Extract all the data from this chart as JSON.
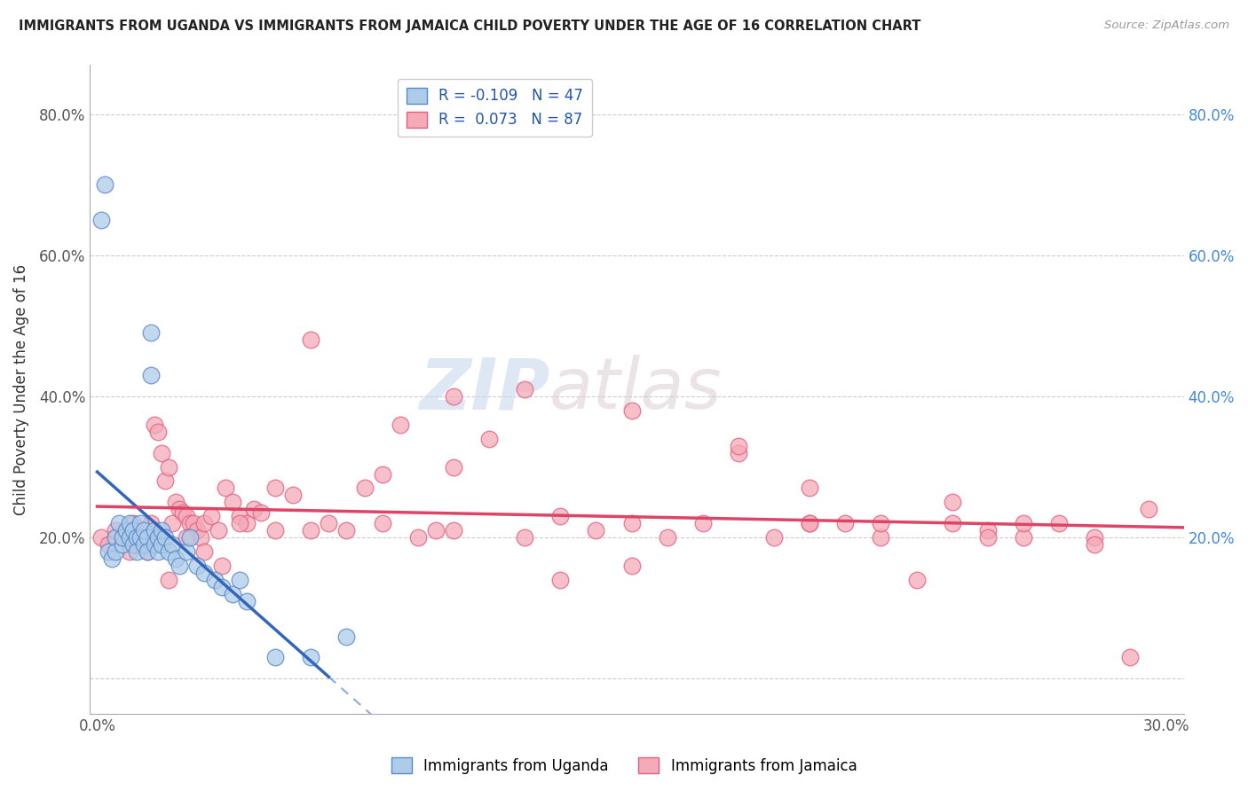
{
  "title": "IMMIGRANTS FROM UGANDA VS IMMIGRANTS FROM JAMAICA CHILD POVERTY UNDER THE AGE OF 16 CORRELATION CHART",
  "source": "Source: ZipAtlas.com",
  "ylabel": "Child Poverty Under the Age of 16",
  "xlim": [
    -0.002,
    0.305
  ],
  "ylim": [
    -0.05,
    0.87
  ],
  "ytick_values": [
    0.0,
    0.2,
    0.4,
    0.6,
    0.8
  ],
  "ytick_labels": [
    "",
    "20.0%",
    "40.0%",
    "60.0%",
    "80.0%"
  ],
  "xtick_values": [
    0.0,
    0.05,
    0.1,
    0.15,
    0.2,
    0.25,
    0.3
  ],
  "xtick_labels": [
    "0.0%",
    "",
    "",
    "",
    "",
    "",
    "30.0%"
  ],
  "right_ytick_values": [
    0.2,
    0.4,
    0.6,
    0.8
  ],
  "right_ytick_labels": [
    "20.0%",
    "40.0%",
    "60.0%",
    "80.0%"
  ],
  "uganda_color": "#aecce8",
  "jamaica_color": "#f5aab8",
  "uganda_edge_color": "#5588cc",
  "jamaica_edge_color": "#e06080",
  "uganda_line_color": "#3366bb",
  "jamaica_line_color": "#dd4466",
  "legend_uganda_label": "R = -0.109   N = 47",
  "legend_jamaica_label": "R =  0.073   N = 87",
  "watermark_zip": "ZIP",
  "watermark_atlas": "atlas",
  "uganda_x": [
    0.001,
    0.002,
    0.003,
    0.004,
    0.005,
    0.005,
    0.006,
    0.007,
    0.007,
    0.008,
    0.009,
    0.009,
    0.01,
    0.01,
    0.011,
    0.011,
    0.012,
    0.012,
    0.013,
    0.013,
    0.014,
    0.014,
    0.015,
    0.015,
    0.016,
    0.016,
    0.017,
    0.017,
    0.018,
    0.018,
    0.019,
    0.02,
    0.021,
    0.022,
    0.023,
    0.025,
    0.026,
    0.028,
    0.03,
    0.033,
    0.035,
    0.038,
    0.04,
    0.042,
    0.05,
    0.06,
    0.07
  ],
  "uganda_y": [
    0.65,
    0.7,
    0.18,
    0.17,
    0.2,
    0.18,
    0.22,
    0.19,
    0.2,
    0.21,
    0.2,
    0.22,
    0.19,
    0.21,
    0.2,
    0.18,
    0.22,
    0.2,
    0.19,
    0.21,
    0.2,
    0.18,
    0.49,
    0.43,
    0.19,
    0.21,
    0.2,
    0.18,
    0.19,
    0.21,
    0.2,
    0.18,
    0.19,
    0.17,
    0.16,
    0.18,
    0.2,
    0.16,
    0.15,
    0.14,
    0.13,
    0.12,
    0.14,
    0.11,
    0.03,
    0.03,
    0.06
  ],
  "jamaica_x": [
    0.001,
    0.003,
    0.005,
    0.007,
    0.009,
    0.01,
    0.011,
    0.012,
    0.013,
    0.014,
    0.015,
    0.016,
    0.017,
    0.018,
    0.019,
    0.02,
    0.021,
    0.022,
    0.023,
    0.024,
    0.025,
    0.026,
    0.027,
    0.028,
    0.029,
    0.03,
    0.032,
    0.034,
    0.036,
    0.038,
    0.04,
    0.042,
    0.044,
    0.046,
    0.05,
    0.055,
    0.06,
    0.065,
    0.07,
    0.075,
    0.08,
    0.085,
    0.09,
    0.095,
    0.1,
    0.11,
    0.12,
    0.13,
    0.14,
    0.15,
    0.16,
    0.17,
    0.18,
    0.19,
    0.2,
    0.21,
    0.22,
    0.23,
    0.24,
    0.25,
    0.26,
    0.27,
    0.28,
    0.29,
    0.295,
    0.02,
    0.025,
    0.03,
    0.035,
    0.04,
    0.05,
    0.06,
    0.08,
    0.1,
    0.12,
    0.15,
    0.18,
    0.2,
    0.22,
    0.24,
    0.26,
    0.28,
    0.15,
    0.2,
    0.25,
    0.1,
    0.13
  ],
  "jamaica_y": [
    0.2,
    0.19,
    0.21,
    0.2,
    0.18,
    0.22,
    0.19,
    0.2,
    0.21,
    0.18,
    0.22,
    0.36,
    0.35,
    0.32,
    0.28,
    0.3,
    0.22,
    0.25,
    0.24,
    0.235,
    0.23,
    0.22,
    0.22,
    0.21,
    0.2,
    0.22,
    0.23,
    0.21,
    0.27,
    0.25,
    0.23,
    0.22,
    0.24,
    0.235,
    0.21,
    0.26,
    0.48,
    0.22,
    0.21,
    0.27,
    0.29,
    0.36,
    0.2,
    0.21,
    0.21,
    0.34,
    0.2,
    0.23,
    0.21,
    0.16,
    0.2,
    0.22,
    0.32,
    0.2,
    0.22,
    0.22,
    0.2,
    0.14,
    0.25,
    0.21,
    0.2,
    0.22,
    0.2,
    0.03,
    0.24,
    0.14,
    0.2,
    0.18,
    0.16,
    0.22,
    0.27,
    0.21,
    0.22,
    0.4,
    0.41,
    0.38,
    0.33,
    0.27,
    0.22,
    0.22,
    0.22,
    0.19,
    0.22,
    0.22,
    0.2,
    0.3,
    0.14
  ]
}
